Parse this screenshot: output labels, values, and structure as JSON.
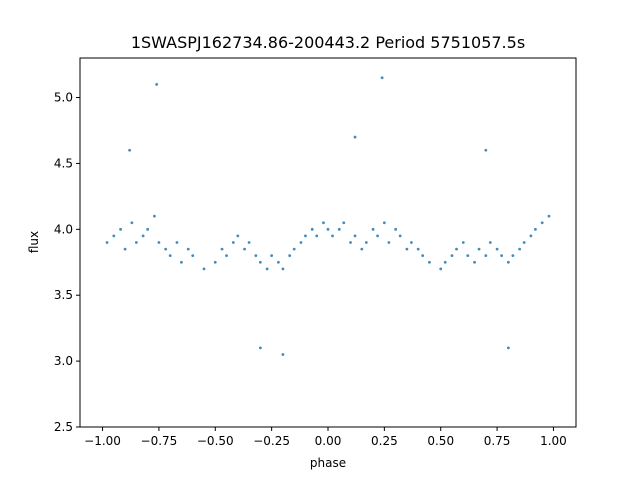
{
  "chart_data": {
    "type": "scatter",
    "title": "1SWASPJ162734.86-200443.2 Period 5751057.5s",
    "xlabel": "phase",
    "ylabel": "flux",
    "xlim": [
      -1.1,
      1.1
    ],
    "ylim": [
      2.5,
      5.3
    ],
    "x_ticks": [
      -1.0,
      -0.75,
      -0.5,
      -0.25,
      0.0,
      0.25,
      0.5,
      0.75,
      1.0
    ],
    "x_tick_labels": [
      "−1.00",
      "−0.75",
      "−0.50",
      "−0.25",
      "0.00",
      "0.25",
      "0.50",
      "0.75",
      "1.00"
    ],
    "y_ticks": [
      2.5,
      3.0,
      3.5,
      4.0,
      4.5,
      5.0
    ],
    "y_tick_labels": [
      "2.5",
      "3.0",
      "3.5",
      "4.0",
      "4.5",
      "5.0"
    ],
    "grid": false,
    "legend": "none",
    "marker_color": "#1f77b4",
    "series": [
      {
        "x": [
          -0.98,
          -0.95,
          -0.92,
          -0.9,
          -0.87,
          -0.85,
          -0.82,
          -0.8,
          -0.77,
          -0.75,
          -0.72,
          -0.7,
          -0.67,
          -0.65,
          -0.62,
          -0.6,
          -0.55,
          -0.5,
          -0.47,
          -0.45,
          -0.42,
          -0.4,
          -0.37,
          -0.35,
          -0.32,
          -0.3,
          -0.27,
          -0.25,
          -0.22,
          -0.2,
          -0.17,
          -0.15,
          -0.12,
          -0.1,
          -0.07,
          -0.05,
          -0.02,
          0.0,
          0.02,
          0.05,
          0.07,
          0.1,
          0.12,
          0.15,
          0.17,
          0.2,
          0.22,
          0.25,
          0.27,
          0.3,
          0.32,
          0.35,
          0.37,
          0.4,
          0.42,
          0.45,
          0.5,
          0.52,
          0.55,
          0.57,
          0.6,
          0.62,
          0.65,
          0.67,
          0.7,
          0.72,
          0.75,
          0.77,
          0.8,
          0.82,
          0.85,
          0.87,
          0.9,
          0.92,
          0.95,
          0.98,
          -0.76,
          0.24,
          -0.88,
          0.12,
          -0.3,
          0.7,
          -0.2,
          0.8
        ],
        "y": [
          3.9,
          3.95,
          4.0,
          3.85,
          4.05,
          3.9,
          3.95,
          4.0,
          4.1,
          3.9,
          3.85,
          3.8,
          3.9,
          3.75,
          3.85,
          3.8,
          3.7,
          3.75,
          3.85,
          3.8,
          3.9,
          3.95,
          3.85,
          3.9,
          3.8,
          3.75,
          3.7,
          3.8,
          3.75,
          3.7,
          3.8,
          3.85,
          3.9,
          3.95,
          4.0,
          3.95,
          4.05,
          4.0,
          3.95,
          4.0,
          4.05,
          3.9,
          3.95,
          3.85,
          3.9,
          4.0,
          3.95,
          4.05,
          3.9,
          4.0,
          3.95,
          3.85,
          3.9,
          3.85,
          3.8,
          3.75,
          3.7,
          3.75,
          3.8,
          3.85,
          3.9,
          3.8,
          3.75,
          3.85,
          3.8,
          3.9,
          3.85,
          3.8,
          3.75,
          3.8,
          3.85,
          3.9,
          3.95,
          4.0,
          4.05,
          4.1,
          5.1,
          5.15,
          4.6,
          4.7,
          3.1,
          4.6,
          3.05,
          3.1
        ]
      }
    ]
  }
}
